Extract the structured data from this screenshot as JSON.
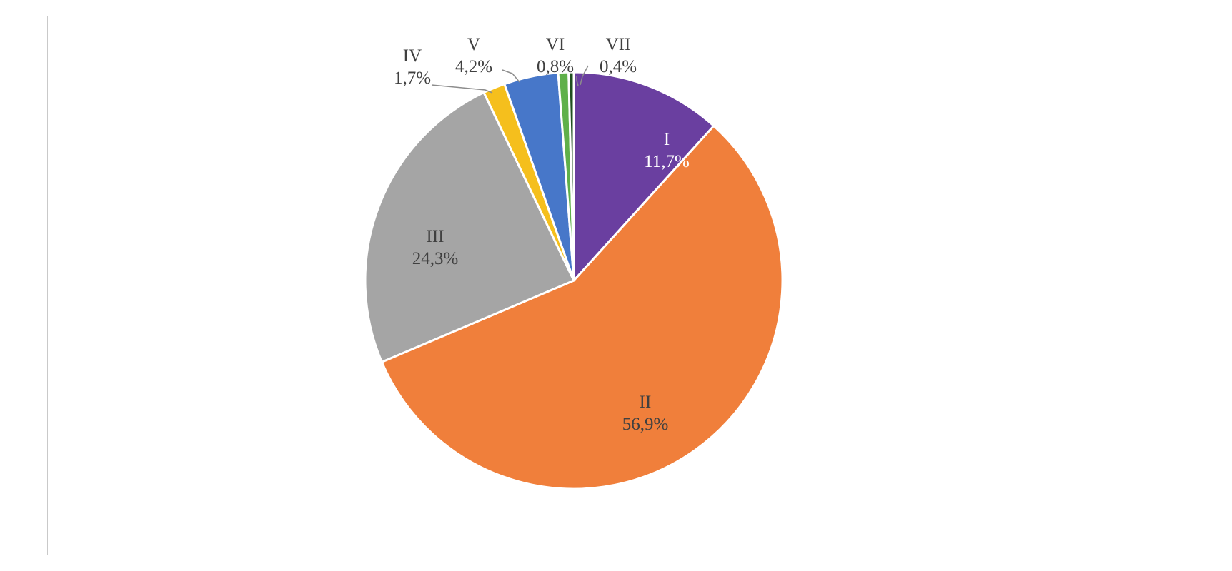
{
  "chart_data": {
    "type": "pie",
    "start_angle_deg": 0,
    "direction": "clockwise",
    "slices": [
      {
        "label": "I",
        "value": 11.7,
        "value_label": "11,7%",
        "color": "#6a3fa0",
        "label_color": "#ffffff",
        "label_inside": true
      },
      {
        "label": "II",
        "value": 56.9,
        "value_label": "56,9%",
        "color": "#f07f3b",
        "label_color": "#404040",
        "label_inside": true
      },
      {
        "label": "III",
        "value": 24.3,
        "value_label": "24,3%",
        "color": "#a5a5a5",
        "label_color": "#404040",
        "label_inside": true
      },
      {
        "label": "IV",
        "value": 1.7,
        "value_label": "1,7%",
        "color": "#f5bf1d",
        "label_color": "#404040",
        "label_inside": false
      },
      {
        "label": "V",
        "value": 4.2,
        "value_label": "4,2%",
        "color": "#4777c9",
        "label_color": "#404040",
        "label_inside": false
      },
      {
        "label": "VI",
        "value": 0.8,
        "value_label": "0,8%",
        "color": "#5fb04a",
        "label_color": "#404040",
        "label_inside": false
      },
      {
        "label": "VII",
        "value": 0.4,
        "value_label": "0,4%",
        "color": "#1f4e1f",
        "label_color": "#404040",
        "label_inside": false
      }
    ],
    "title": "",
    "legend": "none"
  }
}
